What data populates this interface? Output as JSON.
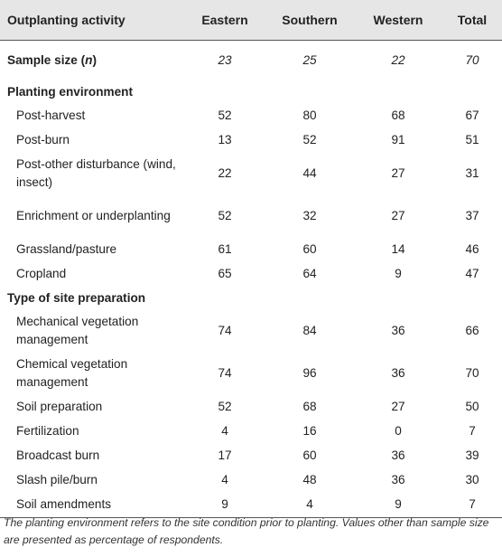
{
  "header": {
    "col_label": "Outplanting activity",
    "col_eastern": "Eastern",
    "col_southern": "Southern",
    "col_western": "Western",
    "col_total": "Total"
  },
  "sample": {
    "label_text": "Sample size (",
    "label_n": "n",
    "label_close": ")",
    "eastern": "23",
    "southern": "25",
    "western": "22",
    "total": "70"
  },
  "planting": {
    "title": "Planting environment",
    "rows": [
      {
        "label": "Post-harvest",
        "eastern": "52",
        "southern": "80",
        "western": "68",
        "total": "67"
      },
      {
        "label": "Post-burn",
        "eastern": "13",
        "southern": "52",
        "western": "91",
        "total": "51"
      },
      {
        "label": "Post-other disturbance (wind, insect)",
        "eastern": "22",
        "southern": "44",
        "western": "27",
        "total": "31"
      },
      {
        "label": "Enrichment or underplanting",
        "eastern": "52",
        "southern": "32",
        "western": "27",
        "total": "37"
      },
      {
        "label": "Grassland/pasture",
        "eastern": "61",
        "southern": "60",
        "western": "14",
        "total": "46"
      },
      {
        "label": "Cropland",
        "eastern": "65",
        "southern": "64",
        "western": "9",
        "total": "47"
      }
    ]
  },
  "site_prep": {
    "title": "Type of site preparation",
    "rows": [
      {
        "label": "Mechanical vegetation management",
        "eastern": "74",
        "southern": "84",
        "western": "36",
        "total": "66"
      },
      {
        "label": "Chemical vegetation management",
        "eastern": "74",
        "southern": "96",
        "western": "36",
        "total": "70"
      },
      {
        "label": "Soil preparation",
        "eastern": "52",
        "southern": "68",
        "western": "27",
        "total": "50"
      },
      {
        "label": "Fertilization",
        "eastern": "4",
        "southern": "16",
        "western": "0",
        "total": "7"
      },
      {
        "label": "Broadcast burn",
        "eastern": "17",
        "southern": "60",
        "western": "36",
        "total": "39"
      },
      {
        "label": "Slash pile/burn",
        "eastern": "4",
        "southern": "48",
        "western": "36",
        "total": "30"
      },
      {
        "label": "Soil amendments",
        "eastern": "9",
        "southern": "4",
        "western": "9",
        "total": "7"
      }
    ]
  },
  "footnote": "The planting environment refers to the site condition prior to planting. Values other than sample size are presented as percentage of respondents."
}
